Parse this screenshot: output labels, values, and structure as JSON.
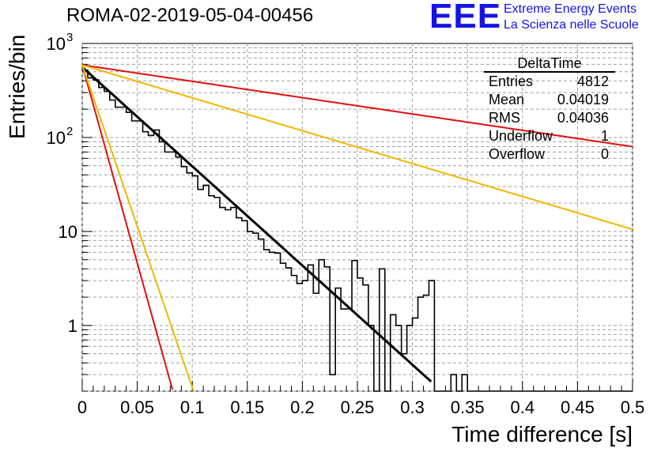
{
  "header": {
    "run_title": "ROMA-02-2019-05-04-00456",
    "logo_mark": "EEE",
    "logo_line1": "Extreme Energy Events",
    "logo_line2": "La Scienza nelle Scuole"
  },
  "stats_box": {
    "title": "DeltaTime",
    "rows": [
      {
        "label": "Entries",
        "value": "4812"
      },
      {
        "label": "Mean",
        "value": "0.04019"
      },
      {
        "label": "RMS",
        "value": "0.04036"
      },
      {
        "label": "Underflow",
        "value": "1"
      },
      {
        "label": "Overflow",
        "value": "0"
      }
    ]
  },
  "chart_data": {
    "type": "histogram",
    "title": "ROMA-02-2019-05-04-00456",
    "xlabel": "Time difference [s]",
    "ylabel": "Entries/bin",
    "xlim": [
      0,
      0.5
    ],
    "ylim": [
      0.2,
      1000
    ],
    "yscale": "log",
    "grid": true,
    "x_ticks": [
      "0",
      "0.05",
      "0.1",
      "0.15",
      "0.2",
      "0.25",
      "0.3",
      "0.35",
      "0.4",
      "0.45",
      "0.5"
    ],
    "y_ticks": [
      {
        "value": 1,
        "label": "1"
      },
      {
        "value": 10,
        "label": "10"
      },
      {
        "value": 100,
        "label": "10",
        "exp": "2"
      },
      {
        "value": 1000,
        "label": "10",
        "exp": "3"
      }
    ],
    "bin_width": 0.005,
    "histogram_counts": [
      520,
      430,
      410,
      340,
      310,
      250,
      210,
      210,
      185,
      150,
      150,
      115,
      105,
      120,
      90,
      70,
      70,
      62,
      49,
      42,
      39,
      28,
      31,
      24,
      23,
      18,
      17,
      18,
      14,
      13,
      10,
      9.6,
      8.3,
      6.4,
      6.0,
      5.9,
      4.6,
      4.1,
      3.4,
      2.8,
      3.0,
      4.4,
      2.2,
      5.0,
      4.2,
      0.3,
      2.5,
      1.5,
      1.5,
      4.9,
      3.2,
      2.7,
      1.0,
      0.1,
      4.0,
      0.2,
      1.3,
      1.0,
      0.5,
      1.0,
      1.2,
      2.0,
      2.1,
      3.0,
      0.2,
      0.2,
      0.2,
      0.3,
      0.1,
      0.3,
      0.2,
      0.1,
      0.2,
      0.1,
      0.0,
      0.0,
      0.0,
      0.0,
      0.0,
      0.0,
      0.0,
      0.0,
      0.0,
      0.0,
      0.0,
      0.0,
      0.0,
      0.0,
      0.0,
      0.0,
      0.0,
      0.0,
      0.0,
      0.0,
      0.0,
      0.0,
      0.0,
      0.0,
      0.0,
      0.0
    ],
    "series": [
      {
        "color": "#000000",
        "amplitude": 560,
        "slope": 24.3,
        "x_end": 0.317
      },
      {
        "color": "#e01010",
        "amplitude": 590,
        "slope": 4.0,
        "x_end": 0.5
      },
      {
        "color": "#f0b800",
        "amplitude": 590,
        "slope": 8.05,
        "x_end": 0.5
      },
      {
        "color": "#e01010",
        "amplitude": 590,
        "slope": 97.0,
        "x_end": 0.082
      },
      {
        "color": "#f0b800",
        "amplitude": 590,
        "slope": 79.0,
        "x_end": 0.101
      }
    ]
  }
}
